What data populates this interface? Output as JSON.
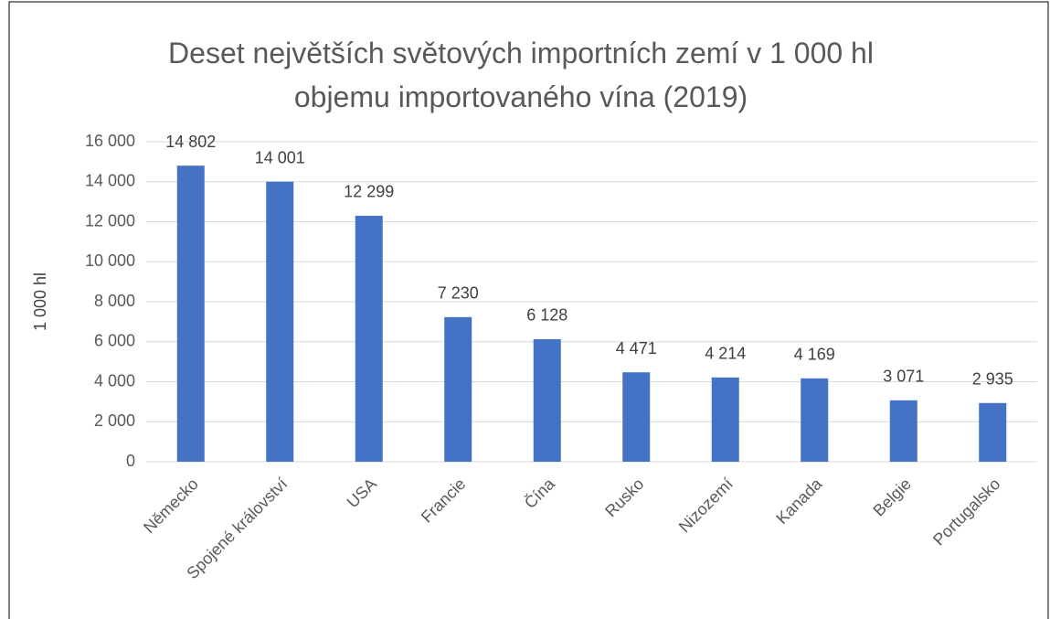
{
  "chart_data": {
    "type": "bar",
    "title": "Deset největších světových importních zemí v 1 000 hl objemu importovaného vína (2019)",
    "y_label": "1 000 hl",
    "categories": [
      "Německo",
      "Spojené království",
      "USA",
      "Francie",
      "Čína",
      "Rusko",
      "Nizozemí",
      "Kanada",
      "Belgie",
      "Portugalsko"
    ],
    "values": [
      14802,
      14001,
      12299,
      7230,
      6128,
      4471,
      4214,
      4169,
      3071,
      2935
    ],
    "value_labels": [
      "14 802",
      "14 001",
      "12 299",
      "7 230",
      "6 128",
      "4 471",
      "4 214",
      "4 169",
      "3 071",
      "2 935"
    ],
    "color": "#4472c4",
    "ylim": [
      0,
      16000
    ],
    "yticks": [
      0,
      {
        "value": 2000,
        "label": "2 000"
      },
      {
        "value": 4000,
        "label": "4 000"
      },
      {
        "value": 6000,
        "label": "6 000"
      },
      {
        "value": 8000,
        "label": "8 000"
      },
      {
        "value": 10000,
        "label": "10 000"
      },
      {
        "value": 12000,
        "label": "12 000"
      },
      {
        "value": 14000,
        "label": "14 000"
      },
      {
        "value": 16000,
        "label": "16 000"
      }
    ],
    "grid": true
  }
}
